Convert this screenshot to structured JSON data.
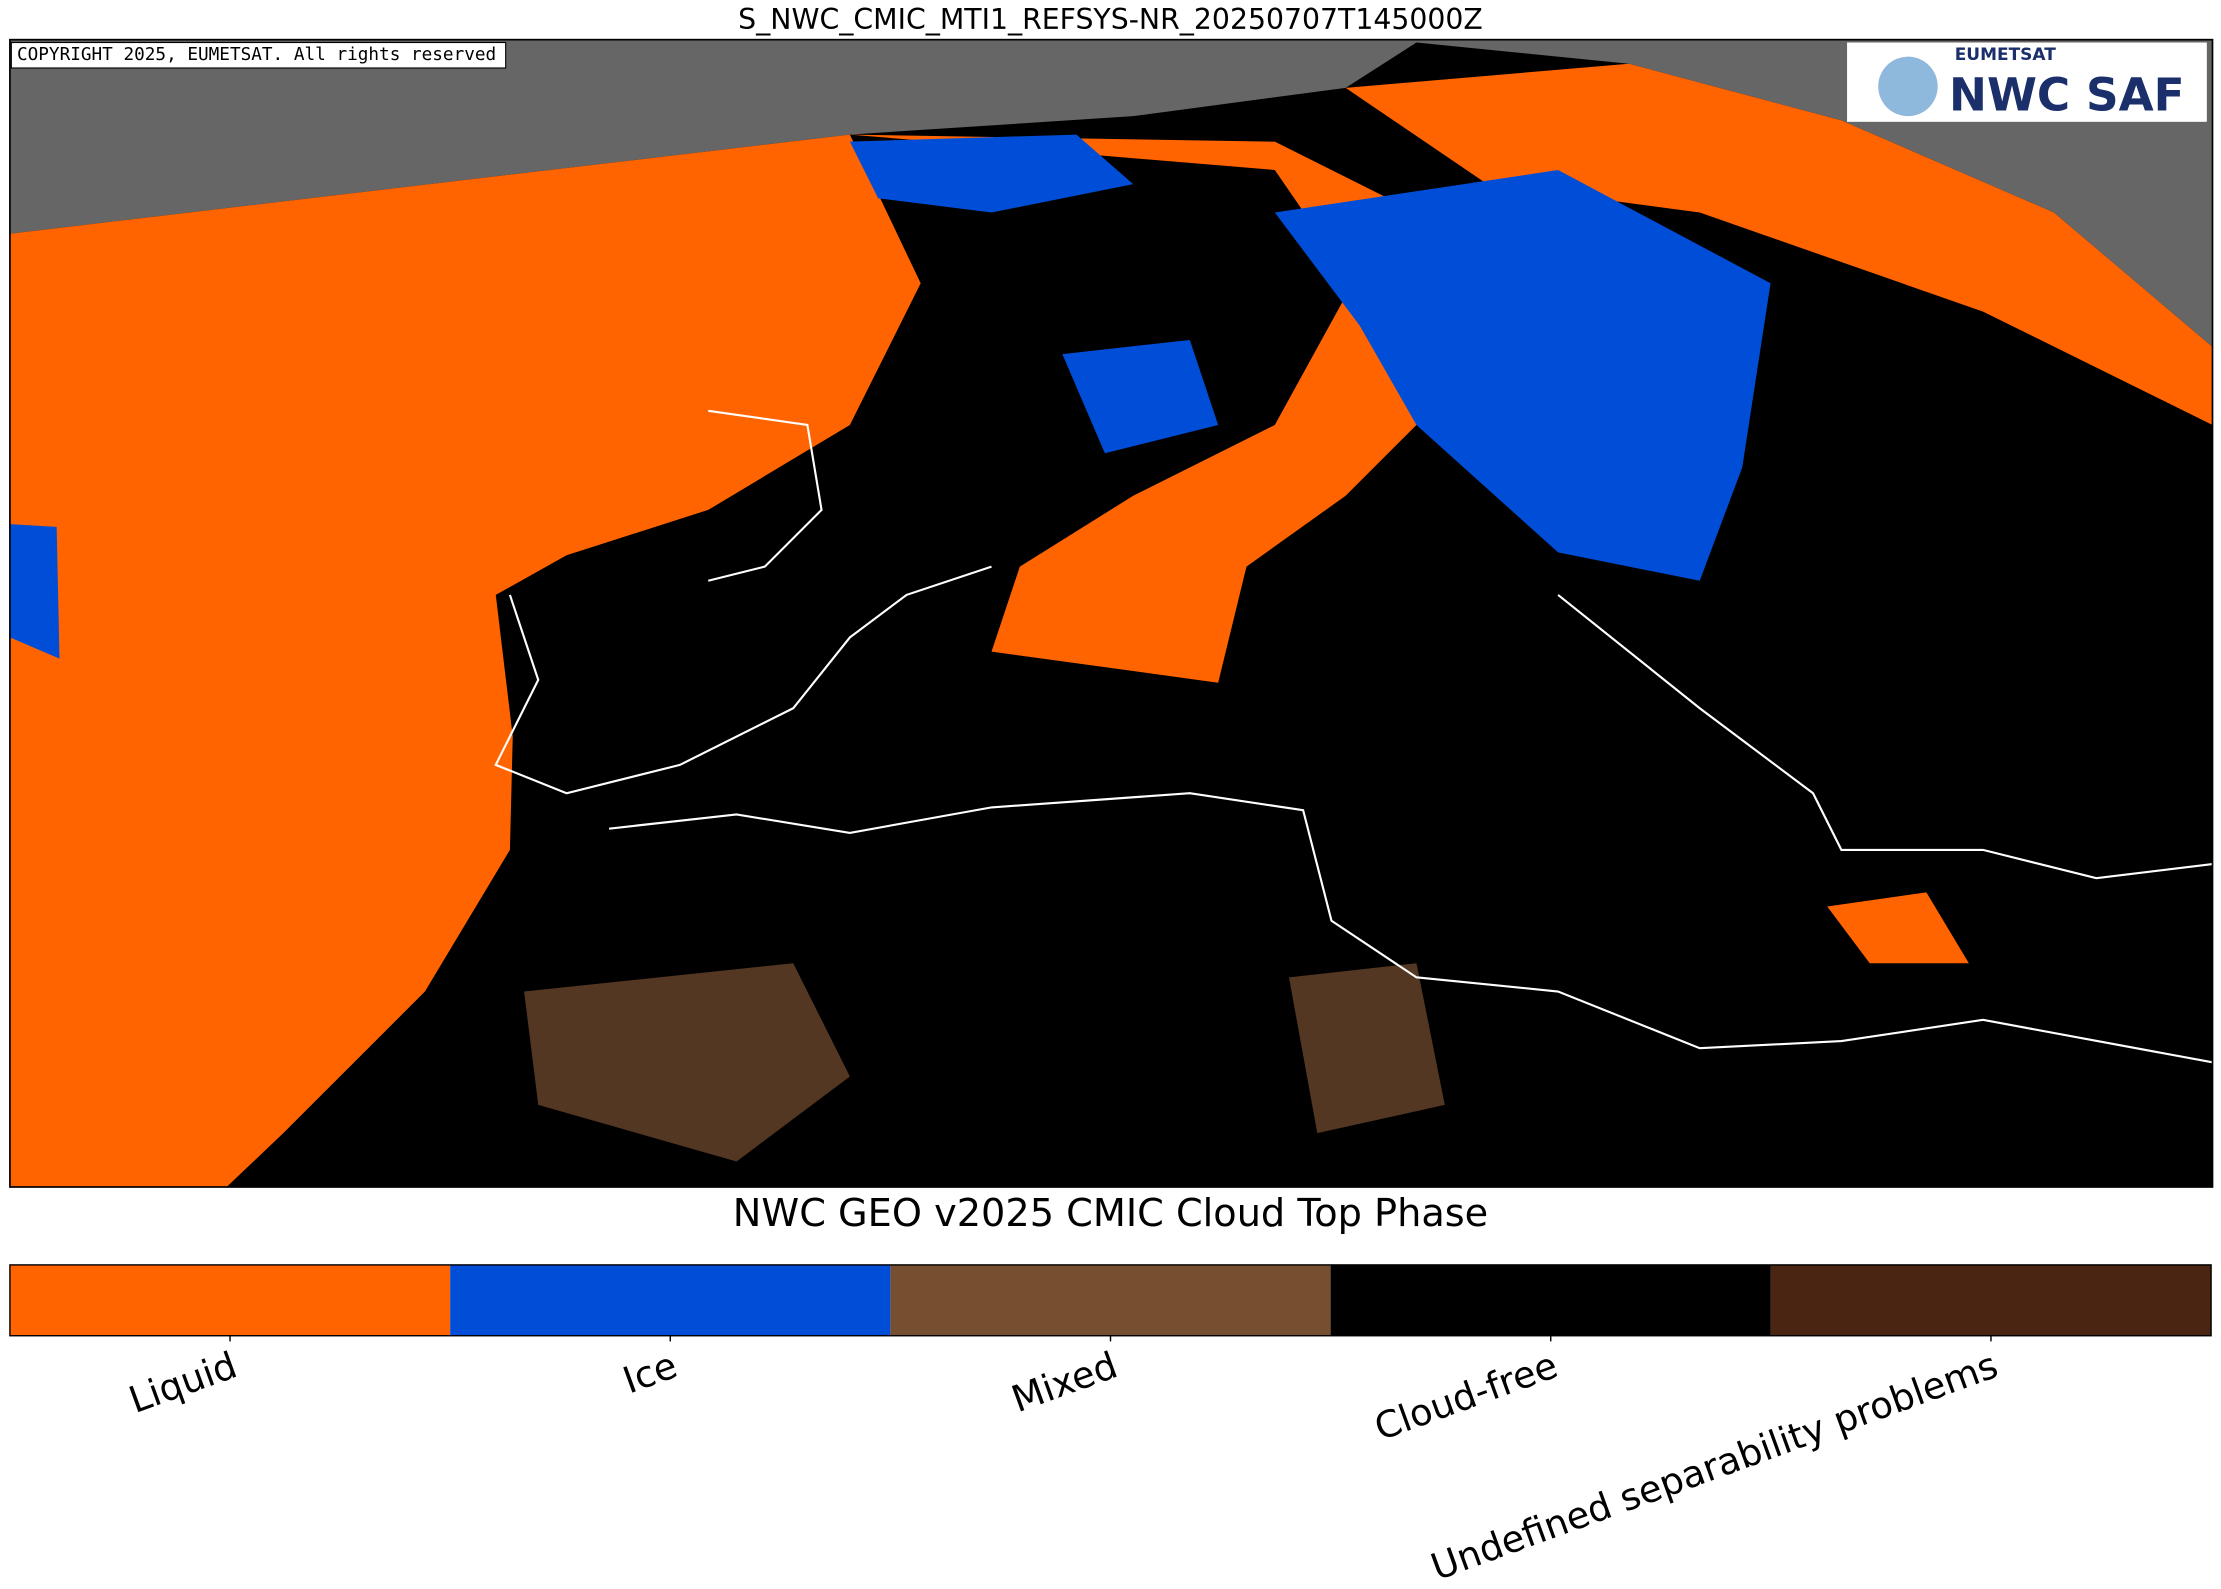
{
  "header": {
    "title": "S_NWC_CMIC_MTI1_REFSYS-NR_20250707T145000Z"
  },
  "map": {
    "copyright": "COPYRIGHT 2025, EUMETSAT. All rights reserved",
    "logo_top": "EUMETSAT",
    "logo_main": "NWC SAF"
  },
  "colorbar": {
    "title": "NWC GEO v2025 CMIC Cloud Top Phase",
    "categories": [
      {
        "label": "Liquid",
        "color": "#ff6400"
      },
      {
        "label": "Ice",
        "color": "#004ed8"
      },
      {
        "label": "Mixed",
        "color": "#764f31"
      },
      {
        "label": "Cloud-free",
        "color": "#000000"
      },
      {
        "label": "Undefined separability problems",
        "color": "#4a2511"
      }
    ]
  }
}
